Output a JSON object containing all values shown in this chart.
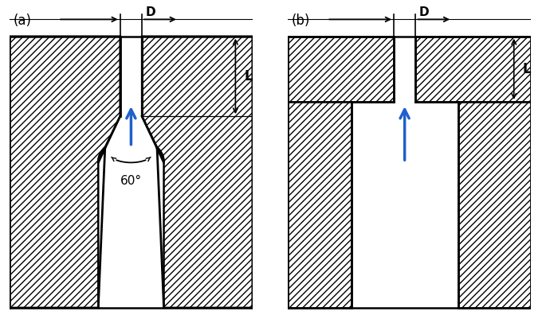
{
  "fig_width": 6.85,
  "fig_height": 3.96,
  "dpi": 100,
  "bg_color": "#ffffff",
  "hatch_pattern": "////",
  "line_color": "#000000",
  "line_width": 1.8,
  "arrow_color": "#2060cc",
  "label_a": "(a)",
  "label_b": "(b)",
  "label_D": "D",
  "label_L": "L",
  "angle_label": "60°"
}
